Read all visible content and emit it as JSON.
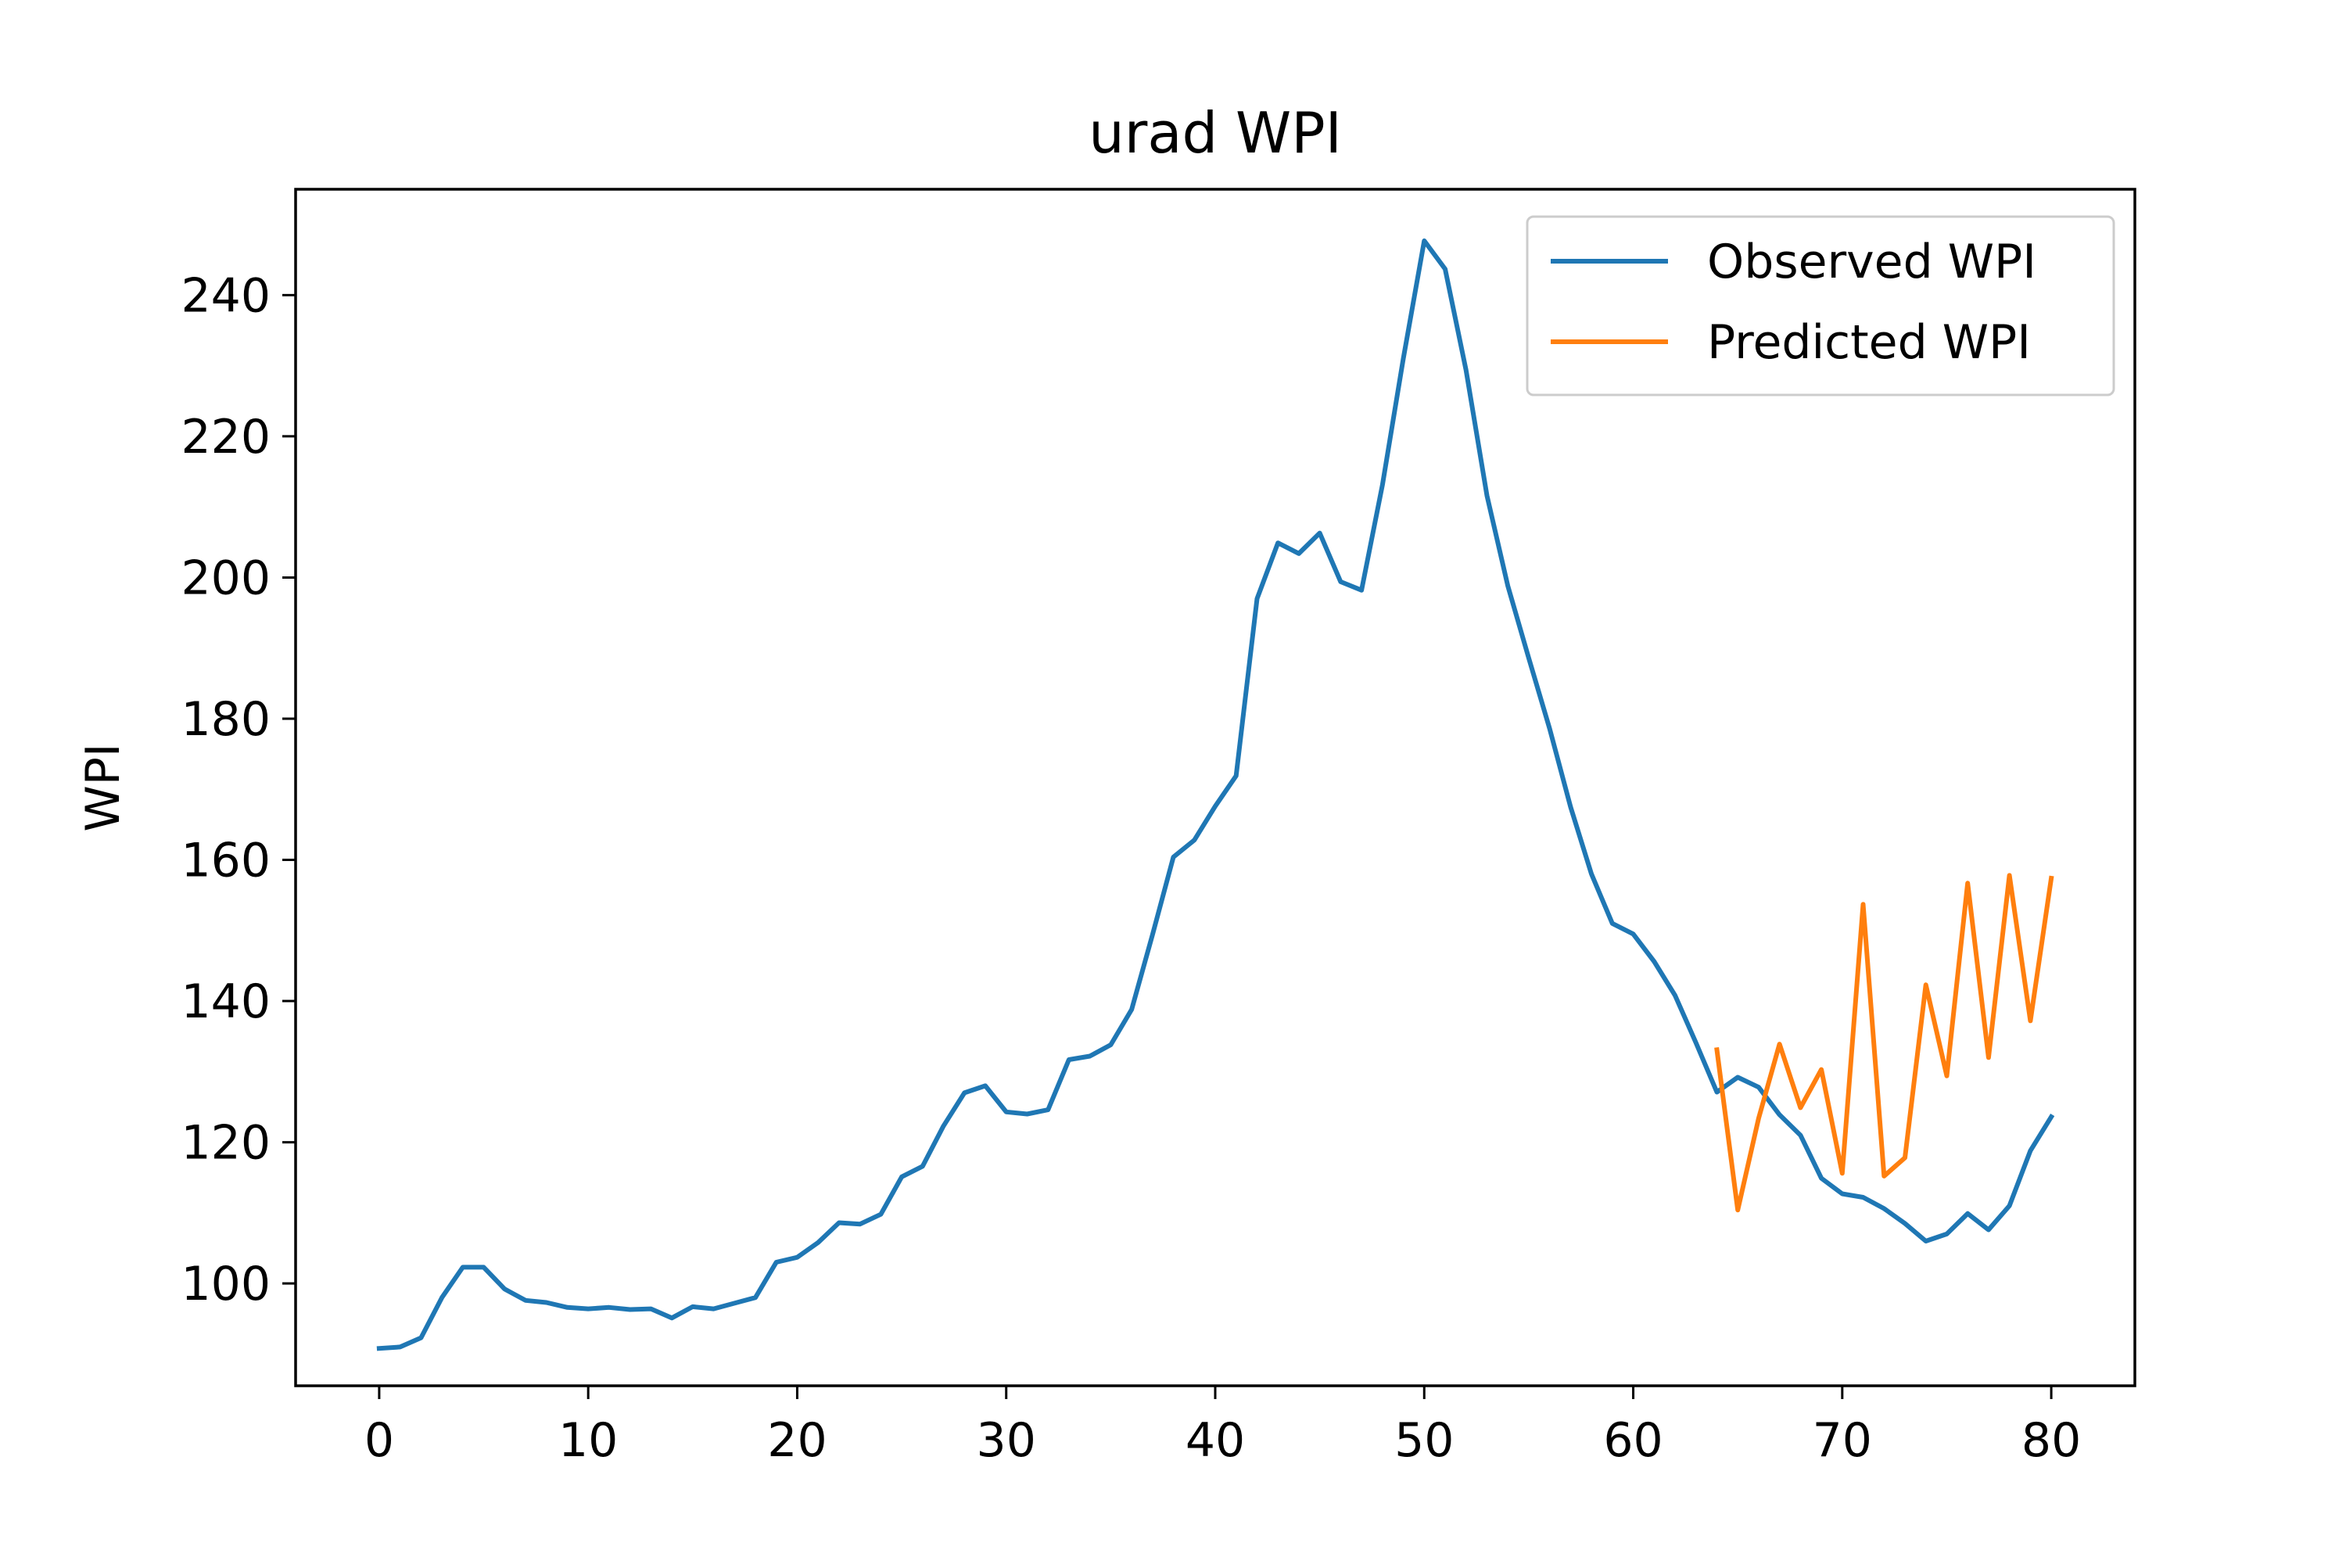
{
  "chart_data": {
    "type": "line",
    "title": "urad WPI",
    "xlabel": "",
    "ylabel": "WPI",
    "xlim": [
      -4,
      84
    ],
    "ylim": [
      85.5,
      255
    ],
    "xticks": [
      0,
      10,
      20,
      30,
      40,
      50,
      60,
      70,
      80
    ],
    "yticks": [
      100,
      120,
      140,
      160,
      180,
      200,
      220,
      240
    ],
    "grid": false,
    "legend": "top-right",
    "series": [
      {
        "name": "Observed WPI",
        "color": "#1f77b4",
        "x": [
          0,
          1,
          2,
          3,
          4,
          5,
          6,
          7,
          8,
          9,
          10,
          11,
          12,
          13,
          14,
          15,
          16,
          17,
          18,
          19,
          20,
          21,
          22,
          23,
          24,
          25,
          26,
          27,
          28,
          29,
          30,
          31,
          32,
          33,
          34,
          35,
          36,
          37,
          38,
          39,
          40,
          41,
          42,
          43,
          44,
          45,
          46,
          47,
          48,
          49,
          50,
          51,
          52,
          53,
          54,
          55,
          56,
          57,
          58,
          59,
          60,
          61,
          62,
          63,
          64,
          65,
          66,
          67,
          68,
          69,
          70,
          71,
          72,
          73,
          74,
          75,
          76,
          77,
          78,
          79,
          80
        ],
        "values": [
          90.8,
          91.0,
          92.3,
          98.0,
          102.3,
          102.3,
          99.2,
          97.6,
          97.3,
          96.6,
          96.4,
          96.6,
          96.3,
          96.4,
          95.1,
          96.7,
          96.4,
          97.2,
          98.0,
          103.0,
          103.7,
          105.8,
          108.6,
          108.4,
          109.8,
          115.1,
          116.6,
          122.3,
          127.0,
          128.0,
          124.3,
          124.0,
          124.6,
          131.7,
          132.2,
          133.8,
          138.8,
          149.4,
          160.4,
          162.8,
          167.6,
          171.9,
          197.0,
          204.9,
          203.4,
          206.3,
          199.4,
          198.2,
          213.1,
          231.0,
          247.7,
          243.7,
          229.4,
          211.6,
          198.8,
          188.6,
          178.6,
          167.5,
          158.0,
          151.0,
          149.5,
          145.6,
          140.8,
          134.1,
          127.1,
          129.2,
          127.8,
          123.9,
          121.0,
          114.9,
          112.7,
          112.2,
          110.6,
          108.5,
          106.0,
          107.0,
          109.9,
          107.6,
          111.0,
          118.8,
          123.6
        ]
      },
      {
        "name": "Predicted WPI",
        "color": "#ff7f0e",
        "x": [
          64,
          65,
          66,
          67,
          68,
          69,
          70,
          71,
          72,
          73,
          74,
          75,
          76,
          77,
          78,
          79,
          80
        ],
        "values": [
          133.1,
          110.4,
          123.4,
          133.9,
          124.9,
          130.3,
          115.6,
          153.7,
          115.2,
          117.8,
          142.3,
          129.4,
          156.7,
          132.0,
          157.8,
          137.2,
          157.4
        ]
      }
    ]
  }
}
